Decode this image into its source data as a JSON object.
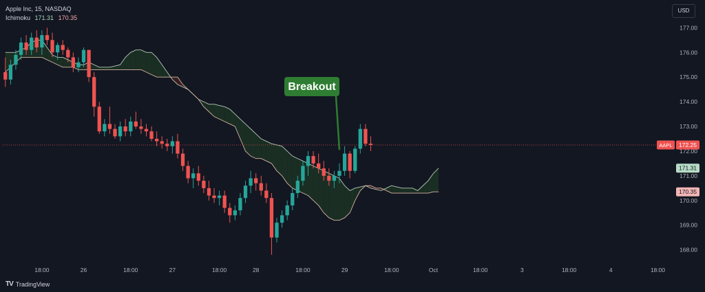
{
  "legend": {
    "symbol_line": "Apple Inc, 15, NASDAQ",
    "indicator": "Ichimoku",
    "ind_val1": "171.31",
    "ind_val2": "170.35"
  },
  "currency_label": "USD",
  "brand": {
    "name": "TradingView",
    "logo_icon": "tradingview-logo-icon"
  },
  "annotation": {
    "text": "Breakout",
    "color": "#2e7d32"
  },
  "colors": {
    "background": "#131722",
    "up": "#26a69a",
    "down": "#ef5350",
    "cloud_bear": "#3a1f22",
    "cloud_bull": "#1a2e24",
    "span_line_a": "#b5c9b5",
    "span_line_b": "#d8b4a0",
    "price_line": "#ef5350",
    "grid_text": "#b2b5be"
  },
  "price_tags": [
    {
      "label": "AAPL",
      "value": "172.25",
      "price": 172.25,
      "style": "last"
    },
    {
      "label": "",
      "value": "171.31",
      "price": 171.31,
      "style": "green"
    },
    {
      "label": "",
      "value": "170.35",
      "price": 170.35,
      "style": "red"
    }
  ],
  "chart_data": {
    "type": "candlestick",
    "title": "Apple Inc, 15, NASDAQ",
    "ylim": [
      167.6,
      177.4
    ],
    "yticks": [
      177,
      176,
      175,
      174,
      173,
      172,
      171,
      170,
      169,
      168
    ],
    "ytick_labels": [
      "177.00",
      "176.00",
      "175.00",
      "174.00",
      "173.00",
      "172.00",
      "171.00",
      "170.00",
      "169.00",
      "168.00"
    ],
    "x_count": 129,
    "xticks": [
      {
        "i": 7,
        "label": "18:00"
      },
      {
        "i": 15,
        "label": "26"
      },
      {
        "i": 24,
        "label": "18:00"
      },
      {
        "i": 32,
        "label": "27"
      },
      {
        "i": 41,
        "label": "18:00"
      },
      {
        "i": 48,
        "label": "28"
      },
      {
        "i": 57,
        "label": "18:00"
      },
      {
        "i": 65,
        "label": "29"
      },
      {
        "i": 74,
        "label": "18:00"
      },
      {
        "i": 82,
        "label": "Oct"
      },
      {
        "i": 91,
        "label": "18:00"
      },
      {
        "i": 99,
        "label": "3"
      },
      {
        "i": 108,
        "label": "18:00"
      },
      {
        "i": 116,
        "label": "4"
      },
      {
        "i": 125,
        "label": "18:00"
      }
    ],
    "last_price": 172.25,
    "candles": [
      [
        175.2,
        175.8,
        174.6,
        174.9
      ],
      [
        174.9,
        175.7,
        174.7,
        175.5
      ],
      [
        175.5,
        176.1,
        175.3,
        175.9
      ],
      [
        175.9,
        176.6,
        175.7,
        176.4
      ],
      [
        176.4,
        176.7,
        175.9,
        176.1
      ],
      [
        176.1,
        176.8,
        175.9,
        176.6
      ],
      [
        176.6,
        176.9,
        176.0,
        176.2
      ],
      [
        176.2,
        176.9,
        175.9,
        176.7
      ],
      [
        176.7,
        177.0,
        176.3,
        176.5
      ],
      [
        176.5,
        176.8,
        175.8,
        176.0
      ],
      [
        176.0,
        176.4,
        175.7,
        176.3
      ],
      [
        176.3,
        176.5,
        175.9,
        176.1
      ],
      [
        176.1,
        176.2,
        175.6,
        175.8
      ],
      [
        175.8,
        176.0,
        175.2,
        175.4
      ],
      [
        175.4,
        175.8,
        175.2,
        175.6
      ],
      [
        175.6,
        176.2,
        175.4,
        176.1
      ],
      [
        176.1,
        176.1,
        174.8,
        175.0
      ],
      [
        175.0,
        175.2,
        173.4,
        173.8
      ],
      [
        173.8,
        174.0,
        172.7,
        172.8
      ],
      [
        172.8,
        173.3,
        172.6,
        173.1
      ],
      [
        173.1,
        173.8,
        172.7,
        172.9
      ],
      [
        172.9,
        173.1,
        172.5,
        172.6
      ],
      [
        172.6,
        173.2,
        172.4,
        173.0
      ],
      [
        173.0,
        173.3,
        172.6,
        172.8
      ],
      [
        172.8,
        173.4,
        172.6,
        173.2
      ],
      [
        173.2,
        173.6,
        172.9,
        173.0
      ],
      [
        173.0,
        173.3,
        172.7,
        172.9
      ],
      [
        172.9,
        173.1,
        172.6,
        172.8
      ],
      [
        172.8,
        173.0,
        172.4,
        172.5
      ],
      [
        172.5,
        172.8,
        172.2,
        172.4
      ],
      [
        172.4,
        172.6,
        172.1,
        172.3
      ],
      [
        172.3,
        172.5,
        172.0,
        172.2
      ],
      [
        172.2,
        172.6,
        171.9,
        172.4
      ],
      [
        172.4,
        172.7,
        171.7,
        171.9
      ],
      [
        171.9,
        172.1,
        171.2,
        171.4
      ],
      [
        171.4,
        171.6,
        170.7,
        170.9
      ],
      [
        170.9,
        171.3,
        170.5,
        171.1
      ],
      [
        171.1,
        171.4,
        170.6,
        170.8
      ],
      [
        170.8,
        171.0,
        170.3,
        170.5
      ],
      [
        170.5,
        170.8,
        170.0,
        170.2
      ],
      [
        170.2,
        170.5,
        169.9,
        170.1
      ],
      [
        170.1,
        170.4,
        169.8,
        170.2
      ],
      [
        170.2,
        170.4,
        169.5,
        169.7
      ],
      [
        169.7,
        169.9,
        169.1,
        169.4
      ],
      [
        169.4,
        169.8,
        169.2,
        169.6
      ],
      [
        169.6,
        170.3,
        169.4,
        170.1
      ],
      [
        170.1,
        170.8,
        169.9,
        170.6
      ],
      [
        170.6,
        171.2,
        170.3,
        170.9
      ],
      [
        170.9,
        171.1,
        170.4,
        170.7
      ],
      [
        170.7,
        171.0,
        170.2,
        170.4
      ],
      [
        170.4,
        170.7,
        169.9,
        170.1
      ],
      [
        170.1,
        170.3,
        167.8,
        168.5
      ],
      [
        168.5,
        169.3,
        168.3,
        169.1
      ],
      [
        169.1,
        169.6,
        168.9,
        169.4
      ],
      [
        169.4,
        170.0,
        169.2,
        169.8
      ],
      [
        169.8,
        170.5,
        169.6,
        170.3
      ],
      [
        170.3,
        171.0,
        170.1,
        170.8
      ],
      [
        170.8,
        171.6,
        170.6,
        171.4
      ],
      [
        171.4,
        172.0,
        171.0,
        171.8
      ],
      [
        171.8,
        172.0,
        171.3,
        171.5
      ],
      [
        171.5,
        171.9,
        171.1,
        171.3
      ],
      [
        171.3,
        171.6,
        170.8,
        171.0
      ],
      [
        171.0,
        171.3,
        170.6,
        170.8
      ],
      [
        170.8,
        171.2,
        170.5,
        171.0
      ],
      [
        171.0,
        171.5,
        170.7,
        171.2
      ],
      [
        171.2,
        172.2,
        171.0,
        171.9
      ],
      [
        171.9,
        172.0,
        170.9,
        171.2
      ],
      [
        171.2,
        172.2,
        171.1,
        172.1
      ],
      [
        172.1,
        173.1,
        171.9,
        172.9
      ],
      [
        172.9,
        173.1,
        172.2,
        172.3
      ],
      [
        172.3,
        172.6,
        172.0,
        172.25
      ]
    ],
    "cloud": {
      "start": 0,
      "span_a": [
        176.0,
        176.0,
        176.0,
        176.1,
        176.2,
        176.4,
        176.5,
        176.5,
        176.2,
        175.9,
        175.8,
        175.8,
        175.7,
        175.6,
        175.5,
        175.5,
        175.6,
        175.5,
        175.4,
        175.4,
        175.4,
        175.45,
        175.5,
        175.8,
        176.0,
        176.1,
        176.1,
        176.0,
        176.0,
        175.8,
        175.5,
        175.2,
        174.9,
        174.7,
        174.6,
        174.5,
        174.3,
        174.1,
        174.0,
        173.9,
        173.9,
        173.85,
        173.8,
        173.7,
        173.5,
        173.3,
        173.1,
        172.9,
        172.7,
        172.5,
        172.4,
        172.3,
        172.25,
        172.2,
        172.0,
        171.8,
        171.7,
        171.6,
        171.5,
        171.4,
        171.3,
        171.2,
        171.1,
        171.0,
        170.9,
        170.6,
        170.4,
        170.5,
        170.55,
        170.6,
        170.5,
        170.45,
        170.4,
        170.5,
        170.6,
        170.55,
        170.5,
        170.5,
        170.5,
        170.4,
        170.6,
        170.8,
        171.1,
        171.31
      ],
      "span_b": [
        175.2,
        175.4,
        175.6,
        175.8,
        175.8,
        175.8,
        175.8,
        175.8,
        175.7,
        175.6,
        175.5,
        175.4,
        175.4,
        175.4,
        175.3,
        175.3,
        175.3,
        175.3,
        175.3,
        175.3,
        175.3,
        175.3,
        175.3,
        175.3,
        175.3,
        175.3,
        175.3,
        175.2,
        175.1,
        175.0,
        175.0,
        175.0,
        175.0,
        175.0,
        174.7,
        174.5,
        174.3,
        174.1,
        173.8,
        173.6,
        173.4,
        173.3,
        173.2,
        173.1,
        173.0,
        172.5,
        172.0,
        171.8,
        171.7,
        171.7,
        171.6,
        171.5,
        171.2,
        171.0,
        170.7,
        170.5,
        170.4,
        170.3,
        170.2,
        170.0,
        169.8,
        169.5,
        169.3,
        169.2,
        169.2,
        169.3,
        169.5,
        170.0,
        170.4,
        170.6,
        170.6,
        170.5,
        170.5,
        170.4,
        170.3,
        170.3,
        170.3,
        170.3,
        170.3,
        170.3,
        170.3,
        170.3,
        170.35,
        170.35
      ]
    }
  }
}
